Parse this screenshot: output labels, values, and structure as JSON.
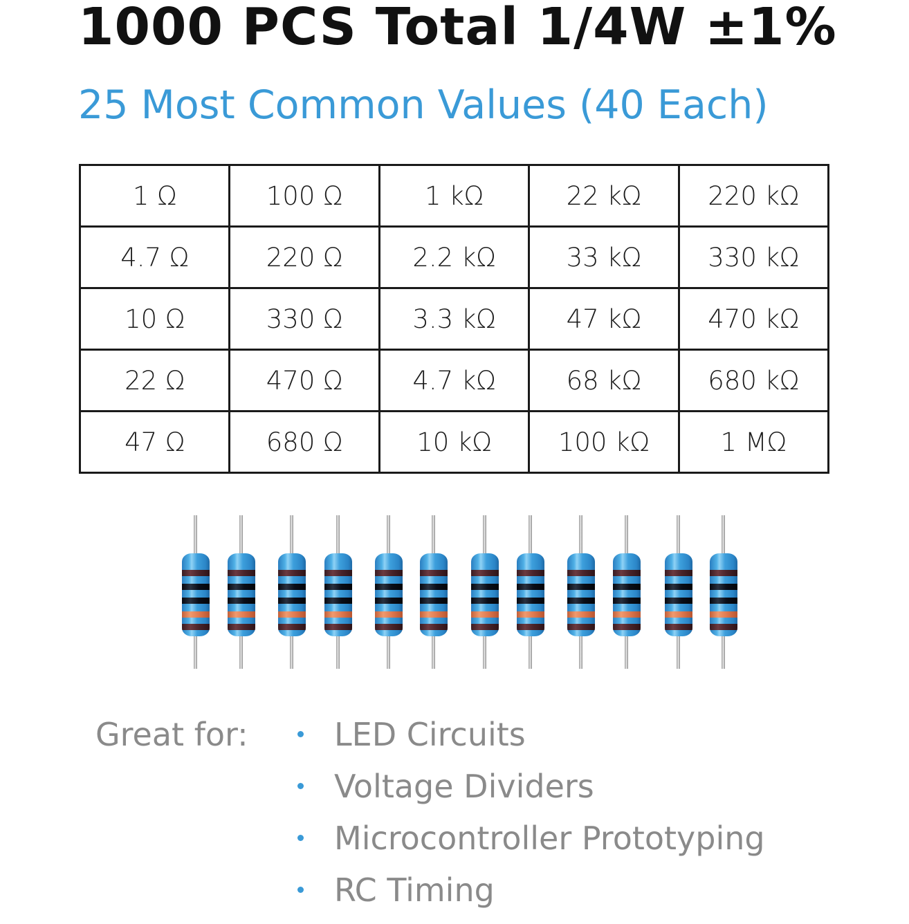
{
  "header": {
    "title": "1000 PCS Total 1/4W ±1%",
    "subtitle": "25 Most Common Values (40 Each)"
  },
  "colors": {
    "title": "#111111",
    "accent_blue": "#3a9ad7",
    "table_border": "#1a1a1a",
    "body_text_gray": "#8a8a8a",
    "resistor_body": "#3d9fdc",
    "band_brown": "#4a242a",
    "band_black": "#0a0e18",
    "band_orange": "#e07a50"
  },
  "values_table": {
    "rows": [
      [
        "1 Ω",
        "100 Ω",
        "1 kΩ",
        "22 kΩ",
        "220 kΩ"
      ],
      [
        "4.7 Ω",
        "220 Ω",
        "2.2 kΩ",
        "33 kΩ",
        "330 kΩ"
      ],
      [
        "10 Ω",
        "330 Ω",
        "3.3 kΩ",
        "47 kΩ",
        "470 kΩ"
      ],
      [
        "22 Ω",
        "470 Ω",
        "4.7 kΩ",
        "68 kΩ",
        "680 kΩ"
      ],
      [
        "47 Ω",
        "680 Ω",
        "10 kΩ",
        "100 kΩ",
        "1 MΩ"
      ]
    ]
  },
  "resistor_illustration": {
    "icon": "resistor-icon",
    "count": 12,
    "bands": [
      "brown",
      "black",
      "black",
      "orange",
      "brown"
    ]
  },
  "uses": {
    "label": "Great for:",
    "bullet_icon": "bullet-dot-icon",
    "items": [
      "LED Circuits",
      "Voltage Dividers",
      "Microcontroller Prototyping",
      "RC Timing"
    ]
  }
}
